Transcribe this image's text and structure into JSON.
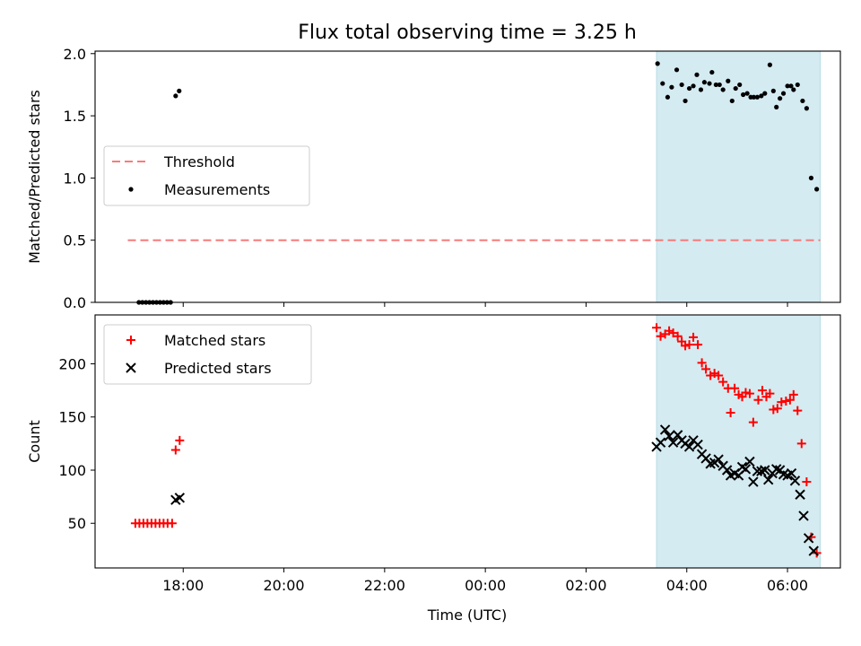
{
  "chart_data": {
    "title": "Flux total observing time = 3.25 h",
    "xlabel": "Time (UTC)",
    "x_ticks": [
      "18:00",
      "20:00",
      "22:00",
      "00:00",
      "02:00",
      "04:00",
      "06:00"
    ],
    "x_tick_hours": [
      18,
      20,
      22,
      24,
      26,
      28,
      30
    ],
    "xlim_hours": [
      16.25,
      31.05
    ],
    "observing_window_hours": [
      27.4,
      30.65
    ],
    "window_color": "#d4ebf1",
    "panels": [
      {
        "type": "scatter",
        "ylabel": "Matched/Predicted stars",
        "ylim": [
          0,
          2.02
        ],
        "y_ticks": [
          "0.0",
          "0.5",
          "1.0",
          "1.5",
          "2.0"
        ],
        "y_tick_values": [
          0,
          0.5,
          1.0,
          1.5,
          2.0
        ],
        "legend_position": "center-left",
        "threshold": {
          "name": "Threshold",
          "value": 0.5,
          "x_range_hours": [
            16.9,
            30.65
          ],
          "color": "#f77b7b"
        },
        "series": [
          {
            "name": "Measurements",
            "color": "#000000",
            "points": [
              [
                17.12,
                0.0
              ],
              [
                17.19,
                0.0
              ],
              [
                17.26,
                0.0
              ],
              [
                17.33,
                0.0
              ],
              [
                17.4,
                0.0
              ],
              [
                17.47,
                0.0
              ],
              [
                17.54,
                0.0
              ],
              [
                17.61,
                0.0
              ],
              [
                17.68,
                0.0
              ],
              [
                17.75,
                0.0
              ],
              [
                17.85,
                1.66
              ],
              [
                17.92,
                1.7
              ],
              [
                27.42,
                1.92
              ],
              [
                27.52,
                1.76
              ],
              [
                27.62,
                1.65
              ],
              [
                27.7,
                1.73
              ],
              [
                27.8,
                1.87
              ],
              [
                27.9,
                1.75
              ],
              [
                27.97,
                1.62
              ],
              [
                28.05,
                1.72
              ],
              [
                28.13,
                1.74
              ],
              [
                28.2,
                1.83
              ],
              [
                28.28,
                1.71
              ],
              [
                28.35,
                1.77
              ],
              [
                28.45,
                1.76
              ],
              [
                28.5,
                1.85
              ],
              [
                28.58,
                1.75
              ],
              [
                28.65,
                1.75
              ],
              [
                28.72,
                1.71
              ],
              [
                28.82,
                1.78
              ],
              [
                28.9,
                1.62
              ],
              [
                28.97,
                1.72
              ],
              [
                29.05,
                1.75
              ],
              [
                29.12,
                1.67
              ],
              [
                29.2,
                1.68
              ],
              [
                29.27,
                1.65
              ],
              [
                29.33,
                1.65
              ],
              [
                29.4,
                1.65
              ],
              [
                29.48,
                1.66
              ],
              [
                29.55,
                1.68
              ],
              [
                29.65,
                1.91
              ],
              [
                29.72,
                1.7
              ],
              [
                29.78,
                1.57
              ],
              [
                29.85,
                1.64
              ],
              [
                29.92,
                1.68
              ],
              [
                30.0,
                1.74
              ],
              [
                30.07,
                1.74
              ],
              [
                30.12,
                1.71
              ],
              [
                30.2,
                1.75
              ],
              [
                30.3,
                1.62
              ],
              [
                30.38,
                1.56
              ],
              [
                30.47,
                1.0
              ],
              [
                30.58,
                0.91
              ]
            ]
          }
        ]
      },
      {
        "type": "scatter",
        "ylabel": "Count",
        "ylim": [
          8,
          246
        ],
        "y_ticks": [
          "50",
          "100",
          "150",
          "200"
        ],
        "y_tick_values": [
          50,
          100,
          150,
          200
        ],
        "legend_position": "top-left",
        "series": [
          {
            "name": "Matched stars",
            "marker": "+",
            "color": "#ff0000",
            "points": [
              [
                17.05,
                50
              ],
              [
                17.13,
                50
              ],
              [
                17.21,
                50
              ],
              [
                17.29,
                50
              ],
              [
                17.37,
                50
              ],
              [
                17.45,
                50
              ],
              [
                17.53,
                50
              ],
              [
                17.61,
                50
              ],
              [
                17.69,
                50
              ],
              [
                17.78,
                50
              ],
              [
                17.85,
                119
              ],
              [
                17.93,
                128
              ],
              [
                27.4,
                234
              ],
              [
                27.48,
                226
              ],
              [
                27.57,
                228
              ],
              [
                27.65,
                231
              ],
              [
                27.73,
                229
              ],
              [
                27.82,
                226
              ],
              [
                27.9,
                221
              ],
              [
                27.97,
                217
              ],
              [
                28.05,
                218
              ],
              [
                28.13,
                225
              ],
              [
                28.22,
                218
              ],
              [
                28.3,
                201
              ],
              [
                28.38,
                195
              ],
              [
                28.47,
                189
              ],
              [
                28.55,
                191
              ],
              [
                28.63,
                189
              ],
              [
                28.72,
                183
              ],
              [
                28.82,
                177
              ],
              [
                28.87,
                154
              ],
              [
                28.95,
                177
              ],
              [
                29.03,
                171
              ],
              [
                29.1,
                169
              ],
              [
                29.17,
                173
              ],
              [
                29.25,
                172
              ],
              [
                29.32,
                145
              ],
              [
                29.42,
                166
              ],
              [
                29.5,
                175
              ],
              [
                29.58,
                169
              ],
              [
                29.65,
                172
              ],
              [
                29.72,
                157
              ],
              [
                29.8,
                158
              ],
              [
                29.88,
                164
              ],
              [
                29.97,
                165
              ],
              [
                30.05,
                166
              ],
              [
                30.12,
                171
              ],
              [
                30.2,
                156
              ],
              [
                30.28,
                125
              ],
              [
                30.38,
                89
              ],
              [
                30.47,
                37
              ],
              [
                30.58,
                22
              ]
            ]
          },
          {
            "name": "Predicted stars",
            "marker": "x",
            "color": "#000000",
            "points": [
              [
                17.85,
                72
              ],
              [
                17.93,
                74
              ],
              [
                27.4,
                122
              ],
              [
                27.48,
                126
              ],
              [
                27.57,
                138
              ],
              [
                27.65,
                132
              ],
              [
                27.73,
                126
              ],
              [
                27.82,
                133
              ],
              [
                27.9,
                128
              ],
              [
                27.97,
                125
              ],
              [
                28.05,
                122
              ],
              [
                28.13,
                128
              ],
              [
                28.22,
                124
              ],
              [
                28.3,
                115
              ],
              [
                28.38,
                111
              ],
              [
                28.47,
                106
              ],
              [
                28.55,
                107
              ],
              [
                28.63,
                110
              ],
              [
                28.72,
                104
              ],
              [
                28.8,
                100
              ],
              [
                28.87,
                95
              ],
              [
                28.95,
                97
              ],
              [
                29.03,
                95
              ],
              [
                29.1,
                103
              ],
              [
                29.17,
                101
              ],
              [
                29.25,
                108
              ],
              [
                29.32,
                89
              ],
              [
                29.4,
                99
              ],
              [
                29.48,
                99
              ],
              [
                29.55,
                100
              ],
              [
                29.62,
                91
              ],
              [
                29.7,
                97
              ],
              [
                29.78,
                101
              ],
              [
                29.85,
                100
              ],
              [
                29.92,
                96
              ],
              [
                30.0,
                95
              ],
              [
                30.08,
                97
              ],
              [
                30.15,
                90
              ],
              [
                30.25,
                77
              ],
              [
                30.32,
                57
              ],
              [
                30.42,
                36
              ],
              [
                30.52,
                24
              ]
            ]
          }
        ]
      }
    ]
  }
}
